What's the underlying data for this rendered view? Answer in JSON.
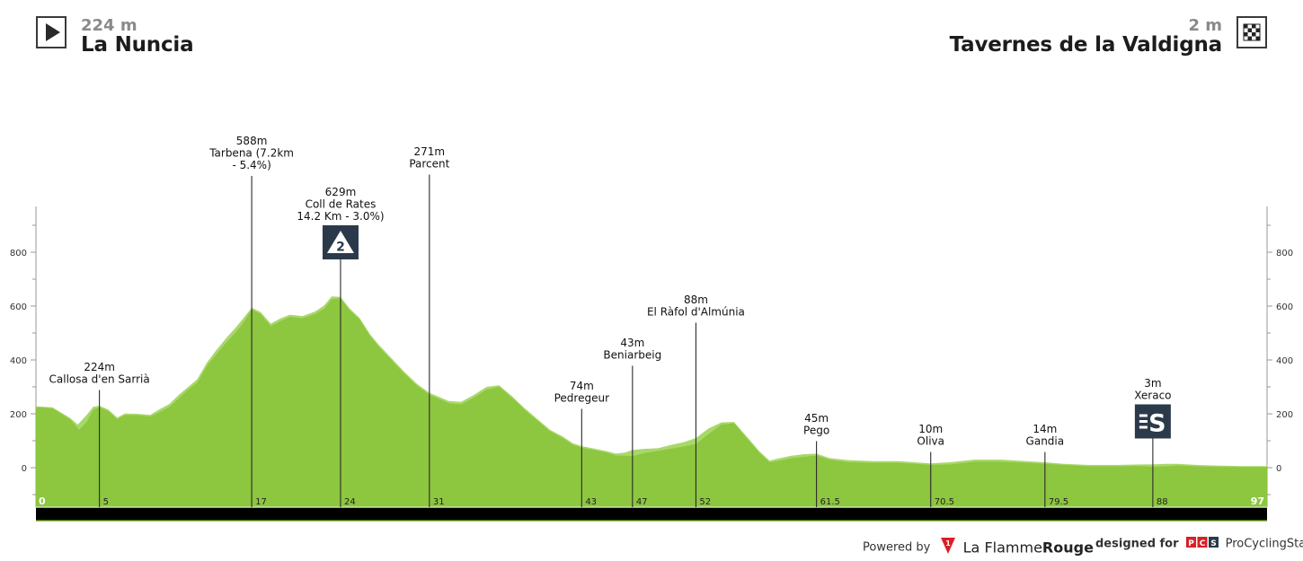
{
  "start": {
    "elevation": "224 m",
    "name": "La Nuncia"
  },
  "finish": {
    "elevation": "2 m",
    "name": "Tavernes de la Valdigna"
  },
  "footer": {
    "powered_by": "Powered by",
    "brand_part1": "La Flamme",
    "brand_part2": "Rouge",
    "designed_for": "designed for",
    "pcs_logo": "PCS",
    "pcs_name": "ProCyclingStats"
  },
  "colors": {
    "profile_fill": "#8dc63f",
    "profile_highlight": "#a9d86a",
    "axis_bar": "#000000",
    "marker_line": "#2a2a2a",
    "badge": "#2b3a4a"
  },
  "chart_data": {
    "type": "area",
    "xlim": [
      0,
      97
    ],
    "ylim": [
      -150,
      1000
    ],
    "yticks": [
      0,
      200,
      400,
      600,
      800
    ],
    "x_start_label": "0",
    "x_end_label": "97",
    "profile": [
      [
        0,
        224
      ],
      [
        1.3,
        220
      ],
      [
        2,
        200
      ],
      [
        2.7,
        180
      ],
      [
        3.4,
        140
      ],
      [
        4,
        170
      ],
      [
        4.5,
        215
      ],
      [
        5,
        224
      ],
      [
        5.7,
        210
      ],
      [
        6.4,
        180
      ],
      [
        7,
        195
      ],
      [
        8,
        195
      ],
      [
        9,
        190
      ],
      [
        9.7,
        205
      ],
      [
        10.5,
        225
      ],
      [
        11.2,
        255
      ],
      [
        12,
        290
      ],
      [
        12.7,
        315
      ],
      [
        13.5,
        380
      ],
      [
        14.2,
        420
      ],
      [
        15,
        465
      ],
      [
        15.7,
        500
      ],
      [
        16.3,
        535
      ],
      [
        17,
        588
      ],
      [
        17.7,
        570
      ],
      [
        18.5,
        525
      ],
      [
        19.3,
        545
      ],
      [
        20,
        560
      ],
      [
        21,
        555
      ],
      [
        22,
        570
      ],
      [
        22.7,
        590
      ],
      [
        23.3,
        625
      ],
      [
        24,
        629
      ],
      [
        24.7,
        585
      ],
      [
        25.5,
        550
      ],
      [
        26.3,
        490
      ],
      [
        27,
        450
      ],
      [
        28,
        400
      ],
      [
        29,
        350
      ],
      [
        30,
        305
      ],
      [
        31,
        271
      ],
      [
        31.8,
        255
      ],
      [
        32.5,
        240
      ],
      [
        33.5,
        235
      ],
      [
        34.5,
        260
      ],
      [
        35.5,
        290
      ],
      [
        36.5,
        300
      ],
      [
        37.5,
        260
      ],
      [
        38.5,
        215
      ],
      [
        39.5,
        175
      ],
      [
        40.5,
        135
      ],
      [
        41.5,
        110
      ],
      [
        42.3,
        85
      ],
      [
        43,
        74
      ],
      [
        44,
        65
      ],
      [
        45,
        55
      ],
      [
        45.7,
        45
      ],
      [
        46.4,
        44
      ],
      [
        47,
        43
      ],
      [
        48,
        55
      ],
      [
        49,
        62
      ],
      [
        50,
        70
      ],
      [
        51,
        78
      ],
      [
        52,
        88
      ],
      [
        53,
        125
      ],
      [
        54,
        160
      ],
      [
        55,
        165
      ],
      [
        56,
        110
      ],
      [
        57,
        55
      ],
      [
        57.8,
        20
      ],
      [
        58.5,
        25
      ],
      [
        59.5,
        35
      ],
      [
        60.5,
        40
      ],
      [
        61.5,
        45
      ],
      [
        62.5,
        30
      ],
      [
        64,
        20
      ],
      [
        66,
        18
      ],
      [
        68,
        18
      ],
      [
        70.5,
        10
      ],
      [
        72,
        12
      ],
      [
        74,
        22
      ],
      [
        76,
        22
      ],
      [
        78,
        18
      ],
      [
        79.5,
        14
      ],
      [
        81,
        10
      ],
      [
        83,
        5
      ],
      [
        85,
        5
      ],
      [
        87,
        6
      ],
      [
        88,
        3
      ],
      [
        89,
        5
      ],
      [
        90,
        8
      ],
      [
        91.5,
        5
      ],
      [
        93,
        3
      ],
      [
        95,
        2
      ],
      [
        97,
        2
      ]
    ],
    "highlight": [
      [
        0,
        228
      ],
      [
        1.3,
        224
      ],
      [
        2,
        204
      ],
      [
        2.7,
        184
      ],
      [
        3.3,
        160
      ],
      [
        4,
        196
      ],
      [
        4.5,
        226
      ],
      [
        5,
        230
      ],
      [
        5.7,
        216
      ],
      [
        6.4,
        186
      ],
      [
        7,
        201
      ],
      [
        8,
        200
      ],
      [
        9,
        196
      ],
      [
        9.7,
        216
      ],
      [
        10.5,
        236
      ],
      [
        11.2,
        268
      ],
      [
        12,
        300
      ],
      [
        12.7,
        328
      ],
      [
        13.5,
        392
      ],
      [
        14.2,
        436
      ],
      [
        15,
        482
      ],
      [
        15.7,
        518
      ],
      [
        16.3,
        552
      ],
      [
        17,
        594
      ],
      [
        17.7,
        578
      ],
      [
        18.5,
        535
      ],
      [
        19.3,
        555
      ],
      [
        20,
        568
      ],
      [
        21,
        563
      ],
      [
        22,
        580
      ],
      [
        22.7,
        602
      ],
      [
        23.3,
        636
      ],
      [
        24,
        634
      ],
      [
        24.7,
        592
      ],
      [
        25.5,
        556
      ],
      [
        26.3,
        497
      ],
      [
        27,
        457
      ],
      [
        28,
        407
      ],
      [
        29,
        357
      ],
      [
        30,
        312
      ],
      [
        31,
        278
      ],
      [
        31.8,
        262
      ],
      [
        32.5,
        248
      ],
      [
        33.5,
        244
      ],
      [
        34.5,
        270
      ],
      [
        35.5,
        300
      ],
      [
        36.5,
        306
      ],
      [
        37.5,
        266
      ],
      [
        38.5,
        221
      ],
      [
        39.5,
        181
      ],
      [
        40.5,
        141
      ],
      [
        41.5,
        116
      ],
      [
        42.3,
        91
      ],
      [
        43,
        80
      ],
      [
        44,
        71
      ],
      [
        45,
        61
      ],
      [
        45.7,
        52
      ],
      [
        46.4,
        56
      ],
      [
        47,
        66
      ],
      [
        48,
        70
      ],
      [
        49,
        72
      ],
      [
        50,
        84
      ],
      [
        51,
        94
      ],
      [
        52,
        110
      ],
      [
        53,
        146
      ],
      [
        54,
        168
      ],
      [
        55,
        170
      ],
      [
        56,
        116
      ],
      [
        57,
        61
      ],
      [
        57.8,
        26
      ],
      [
        58.5,
        34
      ],
      [
        59.5,
        44
      ],
      [
        60.5,
        50
      ],
      [
        61.5,
        52
      ],
      [
        62.5,
        36
      ],
      [
        64,
        28
      ],
      [
        66,
        24
      ],
      [
        68,
        24
      ],
      [
        70.5,
        16
      ],
      [
        72,
        20
      ],
      [
        74,
        30
      ],
      [
        76,
        30
      ],
      [
        78,
        24
      ],
      [
        79.5,
        20
      ],
      [
        81,
        14
      ],
      [
        83,
        10
      ],
      [
        85,
        10
      ],
      [
        87,
        12
      ],
      [
        88,
        12
      ],
      [
        89,
        14
      ],
      [
        90,
        14
      ],
      [
        91.5,
        10
      ],
      [
        93,
        8
      ],
      [
        95,
        6
      ],
      [
        97,
        6
      ]
    ],
    "markers": [
      {
        "km": 5,
        "km_label": "5",
        "elevation_label": "224m",
        "name": "Callosa d'en Sarrià",
        "label_y": 360
      },
      {
        "km": 17,
        "km_label": "17",
        "elevation_label": "588m",
        "name": "Tarbena (7.2km",
        "name2": "- 5.4%)",
        "label_y": 1200
      },
      {
        "km": 24,
        "km_label": "24",
        "elevation_label": "629m",
        "name": "Coll de Rates",
        "name2": "14.2 Km - 3.0%)",
        "label_y": 1010,
        "badge": "2"
      },
      {
        "km": 31,
        "km_label": "31",
        "elevation_label": "271m",
        "name": "Parcent",
        "label_y": 1160
      },
      {
        "km": 43,
        "km_label": "43",
        "elevation_label": "74m",
        "name": "Pedregeur",
        "label_y": 290
      },
      {
        "km": 47,
        "km_label": "47",
        "elevation_label": "43m",
        "name": "Beniarbeig",
        "label_y": 450
      },
      {
        "km": 52,
        "km_label": "52",
        "elevation_label": "88m",
        "name": "El Ràfol d'Almúnia",
        "label_y": 610
      },
      {
        "km": 61.5,
        "km_label": "61.5",
        "elevation_label": "45m",
        "name": "Pego",
        "label_y": 170
      },
      {
        "km": 70.5,
        "km_label": "70.5",
        "elevation_label": "10m",
        "name": "Oliva",
        "label_y": 130
      },
      {
        "km": 79.5,
        "km_label": "79.5",
        "elevation_label": "14m",
        "name": "Gandia",
        "label_y": 130
      },
      {
        "km": 88,
        "km_label": "88",
        "elevation_label": "3m",
        "name": "Xeraco",
        "label_y": 300,
        "badge": "S"
      }
    ]
  }
}
